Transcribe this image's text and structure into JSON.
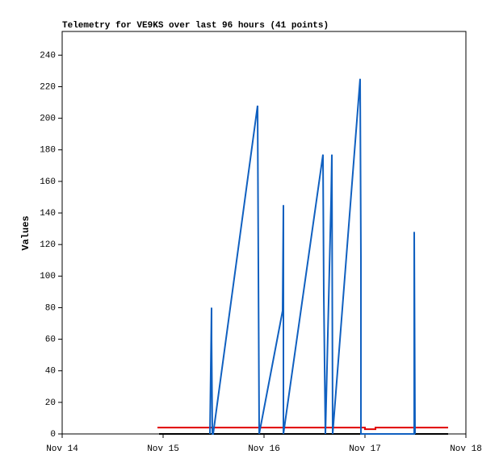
{
  "chart_data": {
    "type": "line",
    "title": "Telemetry for VE9KS over last 96 hours (41 points)",
    "y_label": "Values",
    "xlim": [
      14,
      18
    ],
    "xticks": [
      {
        "value": 14,
        "label": "Nov 14"
      },
      {
        "value": 15,
        "label": "Nov 15"
      },
      {
        "value": 16,
        "label": "Nov 16"
      },
      {
        "value": 17,
        "label": "Nov 17"
      },
      {
        "value": 18,
        "label": "Nov 18"
      }
    ],
    "ylim": [
      0,
      255
    ],
    "yticks": [
      0,
      20,
      40,
      60,
      80,
      100,
      120,
      140,
      160,
      180,
      200,
      220,
      240
    ],
    "series": [
      {
        "color": "#e00000",
        "x": [
          14.944,
          17.0,
          17.0,
          17.104,
          17.104,
          17.824
        ],
        "values": [
          4,
          4,
          3,
          3,
          4,
          4
        ]
      },
      {
        "color": "#000000",
        "x": [
          14.96,
          17.824
        ],
        "values": [
          0,
          0
        ]
      },
      {
        "color": "#1060c0",
        "x": [
          15.464,
          15.48,
          15.48,
          15.488,
          15.496,
          15.936,
          15.944,
          15.952,
          16.184,
          16.192,
          16.192,
          16.584,
          16.592,
          16.608,
          16.664,
          16.672,
          16.68,
          16.952,
          16.96,
          16.96,
          17.488,
          17.488,
          17.496
        ],
        "values": [
          0,
          80,
          60,
          0,
          0,
          208,
          104,
          0,
          78,
          145,
          0,
          177,
          88,
          0,
          147,
          177,
          0,
          225,
          112,
          0,
          0,
          128,
          0
        ]
      }
    ]
  }
}
